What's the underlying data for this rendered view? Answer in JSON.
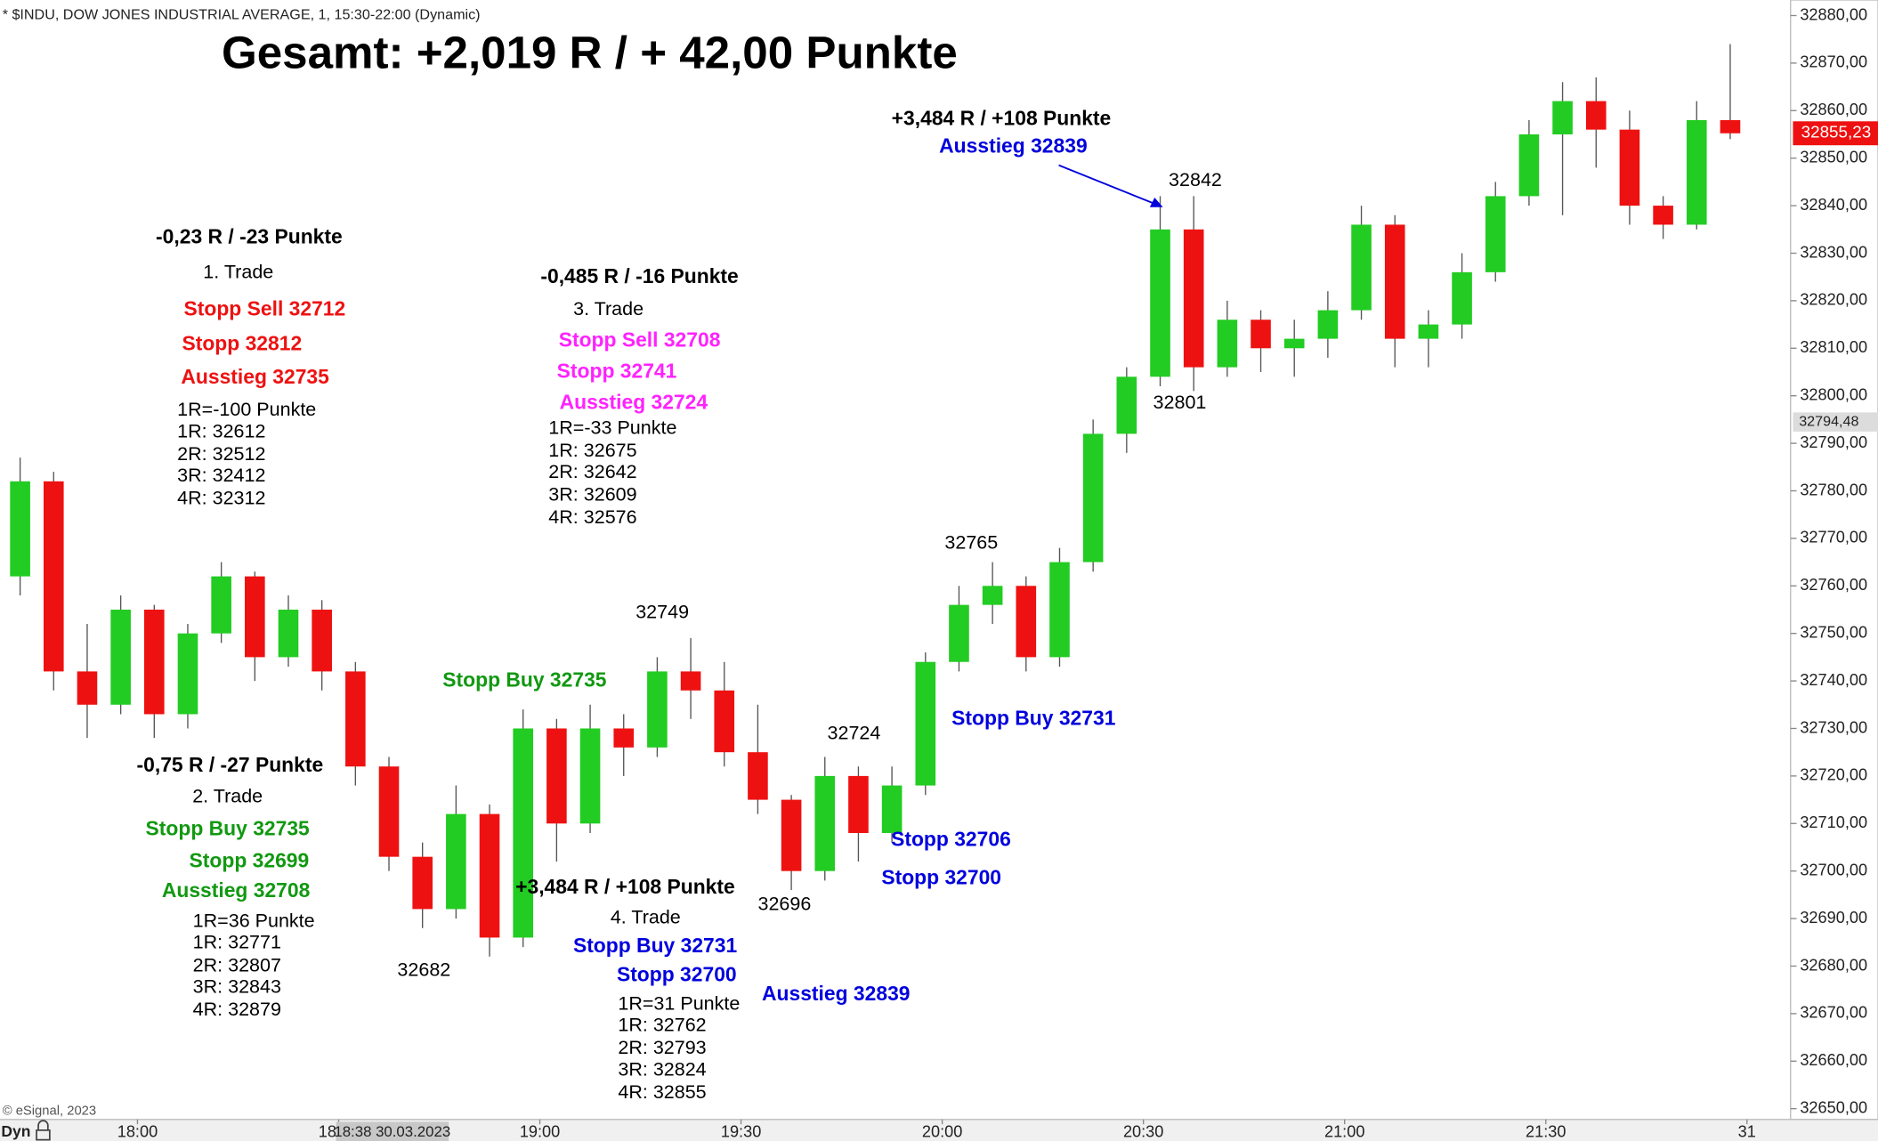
{
  "header": "* $INDU, DOW JONES INDUSTRIAL AVERAGE, 1, 15:30-22:00 (Dynamic)",
  "copyright": "© eSignal, 2023",
  "mode_label": "Dyn",
  "chart_data": {
    "type": "candlestick",
    "title": "Gesamt: +2,019 R / + 42,00 Punkte",
    "x": [
      1060,
      1065,
      1070,
      1075,
      1080,
      1085,
      1090,
      1095,
      1100,
      1105,
      1110,
      1115,
      1120,
      1125,
      1130,
      1135,
      1140,
      1145,
      1150,
      1155,
      1160,
      1165,
      1170,
      1175,
      1180,
      1185,
      1190,
      1195,
      1200,
      1205,
      1210,
      1215,
      1220,
      1225,
      1230,
      1235,
      1240,
      1245,
      1250,
      1255,
      1260,
      1265,
      1270,
      1275,
      1280,
      1285,
      1290,
      1295,
      1300,
      1305,
      1310,
      1315
    ],
    "open": [
      32762,
      32782,
      32742,
      32735,
      32755,
      32733,
      32750,
      32762,
      32745,
      32755,
      32742,
      32722,
      32703,
      32692,
      32712,
      32686,
      32730,
      32710,
      32730,
      32726,
      32742,
      32738,
      32725,
      32715,
      32700,
      32720,
      32708,
      32718,
      32744,
      32756,
      32760,
      32745,
      32765,
      32792,
      32804,
      32835,
      32806,
      32816,
      32810,
      32812,
      32818,
      32836,
      32812,
      32815,
      32826,
      32842,
      32855,
      32862,
      32856,
      32840,
      32836,
      32858
    ],
    "high": [
      32787,
      32784,
      32752,
      32758,
      32756,
      32752,
      32765,
      32763,
      32758,
      32757,
      32744,
      32724,
      32706,
      32718,
      32714,
      32734,
      32732,
      32735,
      32733,
      32745,
      32749,
      32744,
      32735,
      32716,
      32724,
      32722,
      32722,
      32746,
      32760,
      32765,
      32762,
      32768,
      32795,
      32806,
      32842,
      32842,
      32820,
      32818,
      32816,
      32822,
      32840,
      32838,
      32818,
      32830,
      32845,
      32858,
      32866,
      32867,
      32860,
      32842,
      32862,
      32874
    ],
    "low": [
      32758,
      32738,
      32728,
      32733,
      32728,
      32730,
      32748,
      32740,
      32743,
      32738,
      32718,
      32700,
      32688,
      32690,
      32682,
      32684,
      32702,
      32708,
      32720,
      32724,
      32732,
      32722,
      32712,
      32696,
      32698,
      32702,
      32706,
      32716,
      32742,
      32752,
      32742,
      32743,
      32763,
      32788,
      32802,
      32801,
      32804,
      32805,
      32804,
      32808,
      32816,
      32806,
      32806,
      32812,
      32824,
      32840,
      32838,
      32848,
      32836,
      32833,
      32835,
      32854
    ],
    "close": [
      32782,
      32742,
      32735,
      32755,
      32733,
      32750,
      32762,
      32745,
      32755,
      32742,
      32722,
      32703,
      32692,
      32712,
      32686,
      32730,
      32710,
      32730,
      32726,
      32742,
      32738,
      32725,
      32715,
      32700,
      32720,
      32708,
      32718,
      32744,
      32756,
      32760,
      32745,
      32765,
      32792,
      32804,
      32835,
      32806,
      32816,
      32810,
      32812,
      32818,
      32836,
      32812,
      32815,
      32826,
      32842,
      32855,
      32862,
      32856,
      32840,
      32836,
      32858,
      32855.23
    ],
    "up_color": "#22cc22",
    "down_color": "#ee1111",
    "xlim": [
      1059.5,
      1326.5
    ],
    "xticks": [
      {
        "value": 1080,
        "label": "18:00"
      },
      {
        "value": 1110,
        "label": "18:30"
      },
      {
        "value": 1140,
        "label": "19:00"
      },
      {
        "value": 1170,
        "label": "19:30"
      },
      {
        "value": 1200,
        "label": "20:00"
      },
      {
        "value": 1230,
        "label": "20:30"
      },
      {
        "value": 1260,
        "label": "21:00"
      },
      {
        "value": 1290,
        "label": "21:30"
      },
      {
        "value": 1320,
        "label": "31"
      }
    ],
    "ylim": [
      32650,
      32880
    ],
    "yticks": [
      {
        "value": 32650,
        "label": "32650,00"
      },
      {
        "value": 32660,
        "label": "32660,00"
      },
      {
        "value": 32670,
        "label": "32670,00"
      },
      {
        "value": 32680,
        "label": "32680,00"
      },
      {
        "value": 32690,
        "label": "32690,00"
      },
      {
        "value": 32700,
        "label": "32700,00"
      },
      {
        "value": 32710,
        "label": "32710,00"
      },
      {
        "value": 32720,
        "label": "32720,00"
      },
      {
        "value": 32730,
        "label": "32730,00"
      },
      {
        "value": 32740,
        "label": "32740,00"
      },
      {
        "value": 32750,
        "label": "32750,00"
      },
      {
        "value": 32760,
        "label": "32760,00"
      },
      {
        "value": 32770,
        "label": "32770,00"
      },
      {
        "value": 32780,
        "label": "32780,00"
      },
      {
        "value": 32790,
        "label": "32790,00"
      },
      {
        "value": 32800,
        "label": "32800,00"
      },
      {
        "value": 32810,
        "label": "32810,00"
      },
      {
        "value": 32820,
        "label": "32820,00"
      },
      {
        "value": 32830,
        "label": "32830,00"
      },
      {
        "value": 32840,
        "label": "32840,00"
      },
      {
        "value": 32850,
        "label": "32850,00"
      },
      {
        "value": 32860,
        "label": "32860,00"
      },
      {
        "value": 32870,
        "label": "32870,00"
      },
      {
        "value": 32880,
        "label": "32880,00"
      }
    ],
    "last_price": {
      "value": 32855.23,
      "label": "32855,23"
    },
    "cursor_price": {
      "value": 32794.48,
      "label": "32794,48"
    },
    "cursor_time": {
      "value": 1118,
      "label": "18:38 30.03.2023"
    },
    "annotations": [
      "-0,23 R / -23 Punkte",
      "1. Trade",
      "Stopp Sell 32712",
      "Stopp 32812",
      "Ausstieg 32735",
      "1R=-100 Punkte",
      "1R: 32612",
      "2R: 32512",
      "3R: 32412",
      "4R: 32312",
      "-0,75 R / -27 Punkte",
      "2. Trade",
      "Stopp Buy 32735",
      "Stopp 32699",
      "Ausstieg 32708",
      "1R=36 Punkte",
      "1R: 32771",
      "2R: 32807",
      "3R: 32843",
      "4R: 32879",
      "-0,485 R / -16 Punkte",
      "3. Trade",
      "Stopp Sell 32708",
      "Stopp 32741",
      "Ausstieg 32724",
      "1R=-33 Punkte",
      "1R: 32675",
      "2R: 32642",
      "3R: 32609",
      "4R: 32576",
      "+3,484 R / +108 Punkte",
      "4. Trade",
      "Stopp Buy 32731",
      "Stopp 32700",
      "1R=31 Punkte",
      "1R: 32762",
      "2R: 32793",
      "3R: 32824",
      "4R: 32855",
      "Ausstieg 32839",
      "Stopp Buy 32735",
      "Stopp Buy 32731",
      "Stopp 32706",
      "Stopp 32700",
      "+3,484 R / +108 Punkte",
      "Ausstieg 32839",
      "32842",
      "32801",
      "32765",
      "32749",
      "32724",
      "32696",
      "32682"
    ]
  }
}
